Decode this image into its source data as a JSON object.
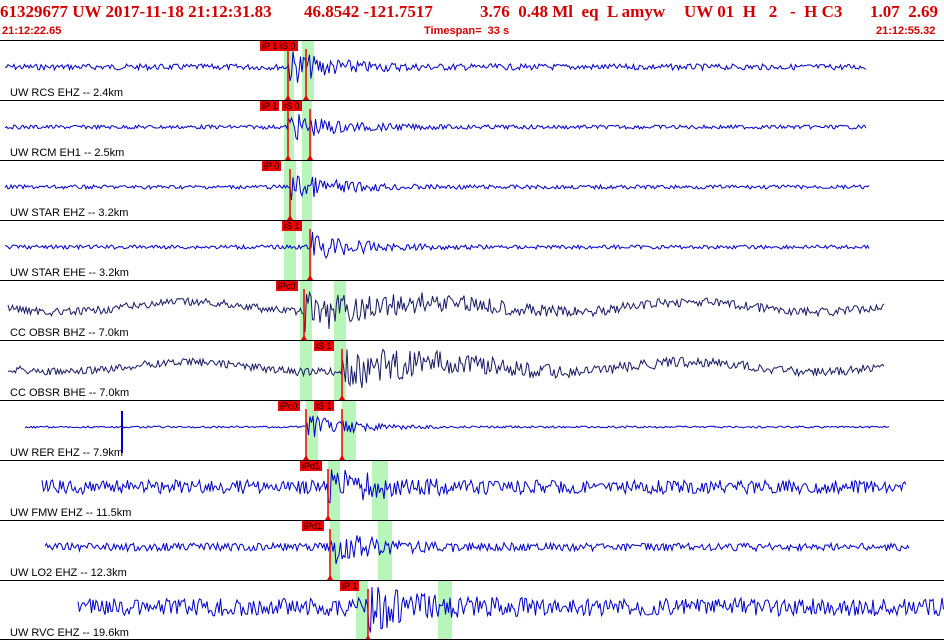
{
  "header": {
    "line1_event": "61329677 UW 2017-11-18 21:12:31.83",
    "line1_loc": "46.8542 -121.7517",
    "line1_mag": "3.76  0.48 Ml  eq  L amyw",
    "line1_flags": "UW 01  H   2   -  H C3",
    "line1_tail": "1.07  2.69",
    "start_time": "21:12:22.65",
    "timespan": "Timespan=  33 s",
    "end_time": "21:12:55.32"
  },
  "colors": {
    "accent": "#d40000",
    "trace_blue": "#0000cc",
    "trace_navy": "#1a1a66",
    "pick_flag": "#ee0000",
    "window_green": "#b8f5b8"
  },
  "channels": [
    {
      "label": "UW RCS EHZ -- 2.4km",
      "picks": [
        "iP 1",
        "iS 0"
      ],
      "color": "blue"
    },
    {
      "label": "UW RCM EH1 -- 2.5km",
      "picks": [
        "iP 1",
        "iS 0"
      ],
      "color": "blue"
    },
    {
      "label": "UW STAR EHZ -- 3.2km",
      "picks": [
        "iP 0"
      ],
      "color": "blue"
    },
    {
      "label": "UW STAR EHE -- 3.2km",
      "picks": [
        "iS 1"
      ],
      "color": "blue"
    },
    {
      "label": "CC OBSR BHZ -- 7.0km",
      "picks": [
        "iPc0"
      ],
      "color": "navy"
    },
    {
      "label": "CC OBSR BHE -- 7.0km",
      "picks": [
        "iS 1"
      ],
      "color": "navy"
    },
    {
      "label": "UW RER EHZ -- 7.9km",
      "picks": [
        "iPc0",
        "iS 1"
      ],
      "color": "blue"
    },
    {
      "label": "UW FMW EHZ -- 11.5km",
      "picks": [
        "iPd1"
      ],
      "color": "blue"
    },
    {
      "label": "UW LO2 EHZ -- 12.3km",
      "picks": [
        "iPd1"
      ],
      "color": "blue"
    },
    {
      "label": "UW RVC EHZ -- 19.6km",
      "picks": [
        "iP 1"
      ],
      "color": "blue"
    }
  ]
}
